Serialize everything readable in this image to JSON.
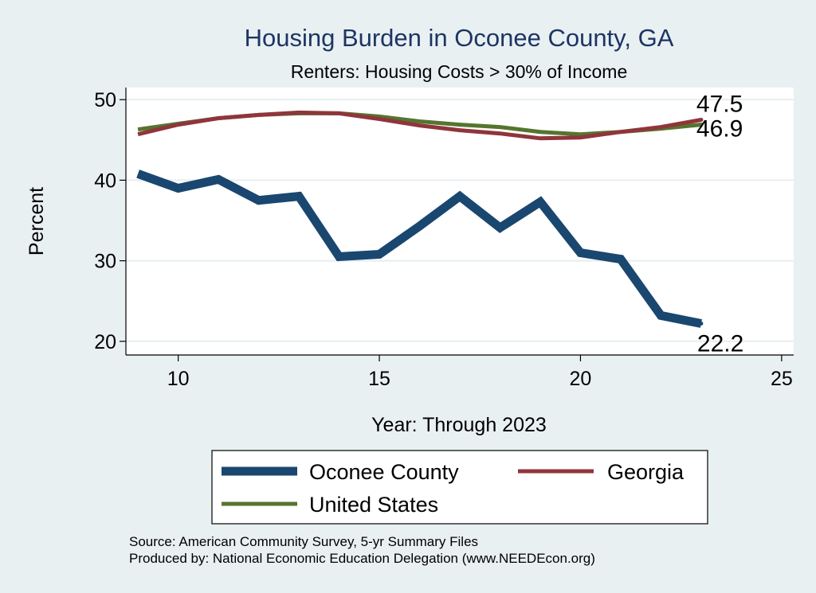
{
  "chart_data": {
    "type": "line",
    "title": "Housing Burden in Oconee County, GA",
    "subtitle": "Renters: Housing Costs > 30% of Income",
    "xlabel": "Year: Through 2023",
    "ylabel": "Percent",
    "xlim": [
      8.7,
      25.3
    ],
    "ylim": [
      18.3,
      51.5
    ],
    "x_ticks": [
      10,
      15,
      20,
      25
    ],
    "y_ticks": [
      20,
      30,
      40,
      50
    ],
    "grid": true,
    "legend_position": "bottom",
    "series": [
      {
        "name": "Oconee County",
        "color": "#1a476f",
        "x": [
          9,
          10,
          11,
          12,
          13,
          14,
          15,
          16,
          17,
          18,
          19,
          20,
          21,
          22,
          23
        ],
        "values": [
          40.8,
          39.0,
          40.1,
          37.5,
          38.0,
          30.5,
          30.8,
          34.3,
          38.0,
          34.1,
          37.3,
          31.0,
          30.2,
          23.2,
          22.2
        ],
        "end_label": "22.2"
      },
      {
        "name": "Georgia",
        "color": "#90353b",
        "x": [
          9,
          10,
          11,
          12,
          13,
          14,
          15,
          16,
          17,
          18,
          19,
          20,
          21,
          22,
          23
        ],
        "values": [
          45.7,
          46.9,
          47.7,
          48.1,
          48.4,
          48.3,
          47.6,
          46.8,
          46.2,
          45.8,
          45.2,
          45.3,
          46.0,
          46.6,
          47.5
        ],
        "end_label": "47.5"
      },
      {
        "name": "United States",
        "color": "#55752f",
        "x": [
          9,
          10,
          11,
          12,
          13,
          14,
          15,
          16,
          17,
          18,
          19,
          20,
          21,
          22,
          23
        ],
        "values": [
          46.3,
          47.0,
          47.7,
          48.1,
          48.3,
          48.3,
          47.9,
          47.3,
          46.9,
          46.6,
          46.0,
          45.7,
          46.0,
          46.4,
          46.9
        ],
        "end_label": "46.9"
      }
    ],
    "legend": [
      {
        "label": "Oconee County",
        "color": "#1a476f"
      },
      {
        "label": "Georgia",
        "color": "#90353b"
      },
      {
        "label": "United States",
        "color": "#55752f"
      }
    ]
  },
  "source": {
    "line1": "Source: American Community Survey, 5-yr Summary Files",
    "line2": "Produced by: National Economic Education Delegation (www.NEEDEcon.org)"
  }
}
